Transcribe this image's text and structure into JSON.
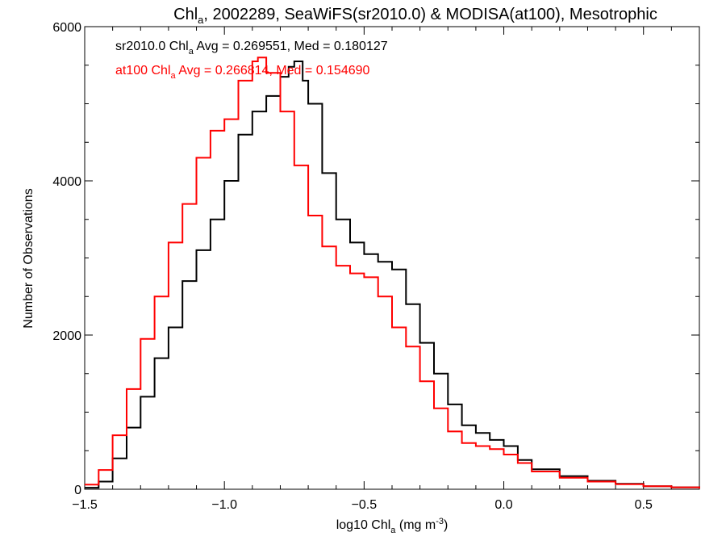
{
  "chart_data": {
    "type": "line",
    "title": {
      "prefix": "Chl",
      "sub": "a",
      "suffix": ", 2002289, SeaWiFS(sr2010.0) & MODISA(at100), Mesotrophic"
    },
    "xlabel": {
      "prefix": "log10 Chl",
      "sub": "a",
      "suffix": " (mg m",
      "sup": "-3",
      "close": ")"
    },
    "ylabel": "Number of Observations",
    "xlim": [
      -1.5,
      0.7
    ],
    "ylim": [
      0,
      6000
    ],
    "x_ticks": [
      {
        "value": -1.5,
        "label": "-1.5"
      },
      {
        "value": -1.0,
        "label": "-1.0"
      },
      {
        "value": -0.5,
        "label": "-0.5"
      },
      {
        "value": 0.0,
        "label": "0.0"
      },
      {
        "value": 0.5,
        "label": "0.5"
      }
    ],
    "y_ticks": [
      {
        "value": 0,
        "label": "0"
      },
      {
        "value": 2000,
        "label": "2000"
      },
      {
        "value": 4000,
        "label": "4000"
      },
      {
        "value": 6000,
        "label": "6000"
      }
    ],
    "annotations": [
      {
        "color": "#000000",
        "prefix": "sr2010.0 Chl",
        "sub": "a",
        "suffix": " Avg = 0.269551, Med = 0.180127"
      },
      {
        "color": "#ff0000",
        "prefix": "at100 Chl",
        "sub": "a",
        "suffix": " Avg = 0.266814, Med = 0.154690"
      }
    ],
    "series": [
      {
        "color": "#000000",
        "x": [
          -1.5,
          -1.45,
          -1.4,
          -1.35,
          -1.3,
          -1.25,
          -1.2,
          -1.15,
          -1.1,
          -1.05,
          -1.0,
          -0.95,
          -0.9,
          -0.85,
          -0.8,
          -0.77,
          -0.75,
          -0.72,
          -0.7,
          -0.65,
          -0.6,
          -0.55,
          -0.5,
          -0.45,
          -0.4,
          -0.35,
          -0.3,
          -0.25,
          -0.2,
          -0.15,
          -0.1,
          -0.05,
          0.0,
          0.05,
          0.1,
          0.2,
          0.3,
          0.4,
          0.5,
          0.6,
          0.7
        ],
        "values": [
          20,
          100,
          400,
          800,
          1200,
          1700,
          2100,
          2700,
          3100,
          3500,
          4000,
          4600,
          4900,
          5100,
          5350,
          5480,
          5550,
          5300,
          5000,
          4100,
          3500,
          3200,
          3050,
          2950,
          2850,
          2400,
          1900,
          1500,
          1100,
          830,
          730,
          640,
          560,
          380,
          260,
          170,
          110,
          70,
          40,
          25,
          10
        ]
      },
      {
        "color": "#ff0000",
        "x": [
          -1.5,
          -1.45,
          -1.4,
          -1.35,
          -1.3,
          -1.25,
          -1.2,
          -1.15,
          -1.1,
          -1.05,
          -1.0,
          -0.95,
          -0.9,
          -0.88,
          -0.85,
          -0.8,
          -0.75,
          -0.7,
          -0.65,
          -0.6,
          -0.55,
          -0.5,
          -0.45,
          -0.4,
          -0.35,
          -0.3,
          -0.25,
          -0.2,
          -0.15,
          -0.1,
          -0.05,
          0.0,
          0.05,
          0.1,
          0.2,
          0.3,
          0.4,
          0.5,
          0.6,
          0.7
        ],
        "values": [
          60,
          250,
          700,
          1300,
          1950,
          2500,
          3200,
          3700,
          4300,
          4650,
          4800,
          5300,
          5550,
          5600,
          5400,
          4900,
          4200,
          3550,
          3150,
          2900,
          2800,
          2750,
          2500,
          2100,
          1850,
          1400,
          1050,
          750,
          600,
          560,
          520,
          450,
          340,
          230,
          150,
          100,
          65,
          40,
          25,
          10
        ]
      }
    ]
  }
}
